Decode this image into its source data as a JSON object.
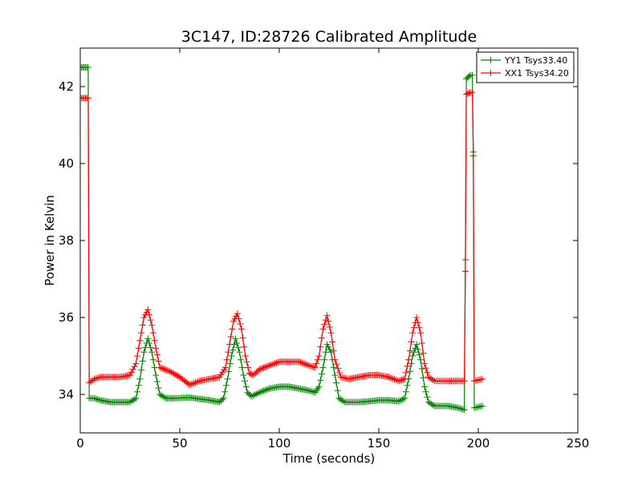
{
  "chart_data": {
    "type": "line",
    "title": "3C147, ID:28726 Calibrated Amplitude",
    "xlabel": "Time (seconds)",
    "ylabel": "Power in Kelvin",
    "xlim": [
      0,
      250
    ],
    "ylim": [
      33,
      43
    ],
    "xticks": [
      0,
      50,
      100,
      150,
      200,
      250
    ],
    "yticks": [
      34,
      36,
      38,
      40,
      42
    ],
    "grid": false,
    "legend_position": "top-right",
    "marker": "+",
    "series": [
      {
        "name": "YY1 Tsys33.40",
        "color": "#008000",
        "x": [
          0,
          2,
          4,
          4.5,
          7,
          10,
          15,
          20,
          25,
          28,
          30,
          32,
          34,
          36,
          38,
          40,
          43,
          48,
          55,
          60,
          65,
          70,
          72,
          74,
          76,
          78,
          80,
          82,
          84,
          86,
          90,
          95,
          100,
          105,
          110,
          115,
          118,
          120,
          122,
          124,
          126,
          128,
          130,
          133,
          140,
          145,
          150,
          155,
          160,
          163,
          165,
          167,
          169,
          171,
          173,
          175,
          178,
          185,
          190,
          193,
          193.5,
          194,
          196,
          197,
          197.5,
          198,
          202
        ],
        "values": [
          42.5,
          42.5,
          42.5,
          33.9,
          33.9,
          33.85,
          33.8,
          33.8,
          33.8,
          33.9,
          34.4,
          35.1,
          35.45,
          35.1,
          34.5,
          34.0,
          33.9,
          33.9,
          33.92,
          33.88,
          33.85,
          33.8,
          33.9,
          34.4,
          35.0,
          35.45,
          35.1,
          34.5,
          34.05,
          33.95,
          34.05,
          34.15,
          34.2,
          34.2,
          34.15,
          34.1,
          34.05,
          34.2,
          34.7,
          35.3,
          35.1,
          34.5,
          33.9,
          33.8,
          33.8,
          33.82,
          33.85,
          33.85,
          33.82,
          33.9,
          34.4,
          35.0,
          35.3,
          34.9,
          34.2,
          33.8,
          33.7,
          33.7,
          33.65,
          33.6,
          37.5,
          42.2,
          42.3,
          42.3,
          40.2,
          33.65,
          33.7
        ]
      },
      {
        "name": "XX1 Tsys34.20",
        "color": "#ff0000",
        "x": [
          0,
          2,
          4,
          4.5,
          7,
          10,
          15,
          20,
          25,
          28,
          30,
          32,
          34,
          36,
          38,
          40,
          45,
          50,
          55,
          60,
          65,
          70,
          73,
          75,
          77,
          79,
          81,
          83,
          85,
          87,
          90,
          95,
          100,
          105,
          110,
          115,
          118,
          120,
          122,
          124,
          126,
          128,
          131,
          135,
          140,
          145,
          150,
          155,
          160,
          163,
          165,
          167,
          169,
          171,
          173,
          175,
          178,
          185,
          190,
          193,
          193.5,
          194,
          196,
          197,
          197.5,
          198,
          202
        ],
        "values": [
          41.7,
          41.7,
          41.7,
          34.3,
          34.4,
          34.45,
          34.45,
          34.45,
          34.5,
          34.8,
          35.4,
          36.0,
          36.2,
          35.8,
          35.2,
          34.7,
          34.6,
          34.45,
          34.25,
          34.35,
          34.4,
          34.45,
          34.7,
          35.3,
          35.9,
          36.1,
          35.7,
          35.0,
          34.55,
          34.5,
          34.65,
          34.75,
          34.85,
          34.85,
          34.85,
          34.75,
          34.7,
          35.0,
          35.7,
          36.05,
          35.6,
          34.9,
          34.45,
          34.4,
          34.45,
          34.5,
          34.5,
          34.45,
          34.35,
          34.4,
          34.9,
          35.6,
          36.0,
          35.6,
          34.8,
          34.45,
          34.35,
          34.35,
          34.35,
          34.35,
          37.2,
          41.8,
          41.85,
          41.85,
          40.3,
          34.35,
          34.4
        ]
      }
    ]
  }
}
